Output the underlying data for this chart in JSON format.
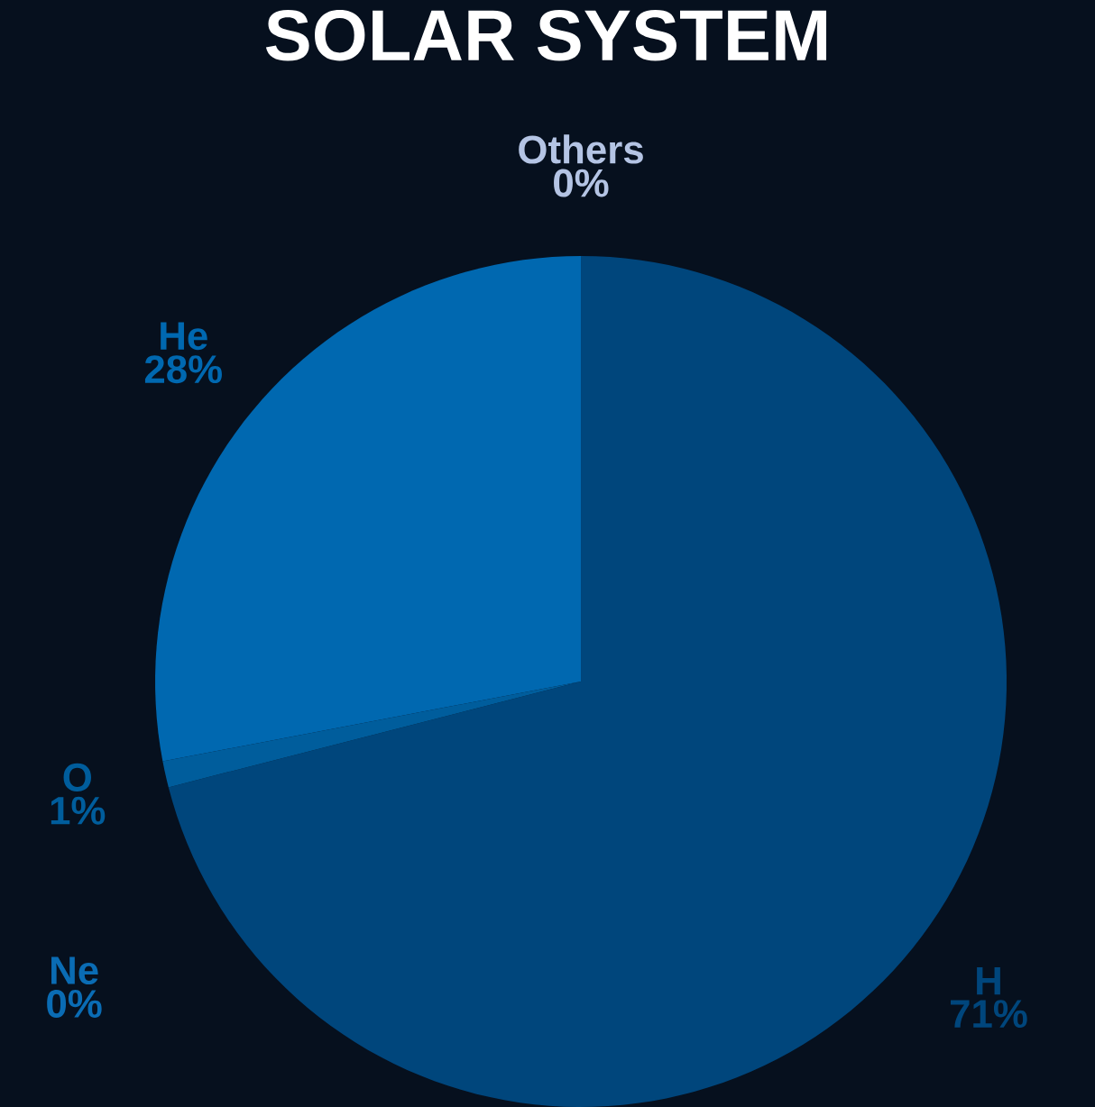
{
  "chart_data": {
    "type": "pie",
    "title": "SOLAR SYSTEM",
    "categories": [
      "H",
      "O",
      "Ne",
      "He",
      "Others"
    ],
    "values": [
      71,
      1,
      0,
      28,
      0
    ],
    "value_labels": [
      "71%",
      "1%",
      "0%",
      "28%",
      "0%"
    ],
    "colors": [
      "#00467c",
      "#005d9c",
      "#0a6cb4",
      "#0068b0",
      "#b4c4e4"
    ]
  }
}
